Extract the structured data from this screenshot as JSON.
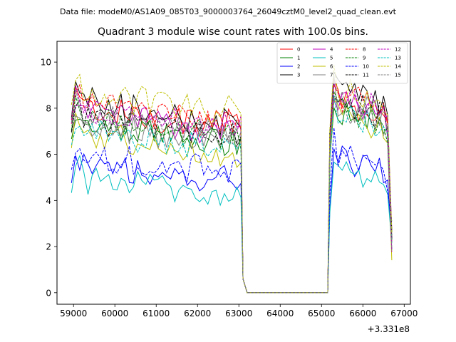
{
  "chart_data": {
    "type": "line",
    "suptitle": "Data file: modeM0/AS1A09_085T03_9000003764_26049cztM0_level2_quad_clean.evt",
    "title": "Quadrant 3 module wise count rates with 100.0s bins.",
    "xlabel": "",
    "ylabel": "",
    "x_offset_label": "+3.331e8",
    "xlim": [
      58600,
      67150
    ],
    "ylim": [
      -0.5,
      10.9
    ],
    "xticks": [
      59000,
      60000,
      61000,
      62000,
      63000,
      64000,
      65000,
      66000,
      67000
    ],
    "yticks": [
      0,
      2,
      4,
      6,
      8,
      10
    ],
    "grid": false,
    "legend_position": "top-right",
    "segments": {
      "seg1": {
        "start": 58950,
        "step": 100,
        "count": 42
      },
      "gap": {
        "x": [
          63100,
          63200,
          65150
        ],
        "values": [
          0.6,
          0,
          0
        ]
      },
      "seg2": {
        "start": 65200,
        "step": 100,
        "count": 16
      }
    },
    "series": [
      {
        "name": "0",
        "color": "#ff0000",
        "dash": "solid",
        "seg1_base": 8.1,
        "seg2_base": 8.4
      },
      {
        "name": "1",
        "color": "#008000",
        "dash": "solid",
        "seg1_base": 7.3,
        "seg2_base": 8.0
      },
      {
        "name": "2",
        "color": "#0000ff",
        "dash": "solid",
        "seg1_base": 5.6,
        "seg2_base": 5.9
      },
      {
        "name": "3",
        "color": "#000000",
        "dash": "solid",
        "seg1_base": 8.3,
        "seg2_base": 8.9
      },
      {
        "name": "4",
        "color": "#bf00bf",
        "dash": "solid",
        "seg1_base": 7.9,
        "seg2_base": 8.5
      },
      {
        "name": "5",
        "color": "#00bfbf",
        "dash": "solid",
        "seg1_base": 5.1,
        "seg2_base": 5.5
      },
      {
        "name": "6",
        "color": "#bfbf00",
        "dash": "solid",
        "seg1_base": 6.9,
        "seg2_base": 7.9
      },
      {
        "name": "7",
        "color": "#808080",
        "dash": "solid",
        "seg1_base": 7.4,
        "seg2_base": 8.3
      },
      {
        "name": "8",
        "color": "#ff0000",
        "dash": "dashed",
        "seg1_base": 8.2,
        "seg2_base": 8.7
      },
      {
        "name": "9",
        "color": "#008000",
        "dash": "dashed",
        "seg1_base": 7.6,
        "seg2_base": 8.1
      },
      {
        "name": "10",
        "color": "#0000ff",
        "dash": "dashed",
        "seg1_base": 6.1,
        "seg2_base": 6.2
      },
      {
        "name": "11",
        "color": "#000000",
        "dash": "dashed",
        "seg1_base": 7.6,
        "seg2_base": 8.4
      },
      {
        "name": "12",
        "color": "#bf00bf",
        "dash": "dashed",
        "seg1_base": 8.0,
        "seg2_base": 8.6
      },
      {
        "name": "13",
        "color": "#00bfbf",
        "dash": "dashed",
        "seg1_base": 7.1,
        "seg2_base": 7.8
      },
      {
        "name": "14",
        "color": "#bfbf00",
        "dash": "dashed",
        "seg1_base": 8.7,
        "seg2_base": 8.8
      },
      {
        "name": "15",
        "color": "#808080",
        "dash": "dashed",
        "seg1_base": 7.8,
        "seg2_base": 8.2
      }
    ]
  }
}
